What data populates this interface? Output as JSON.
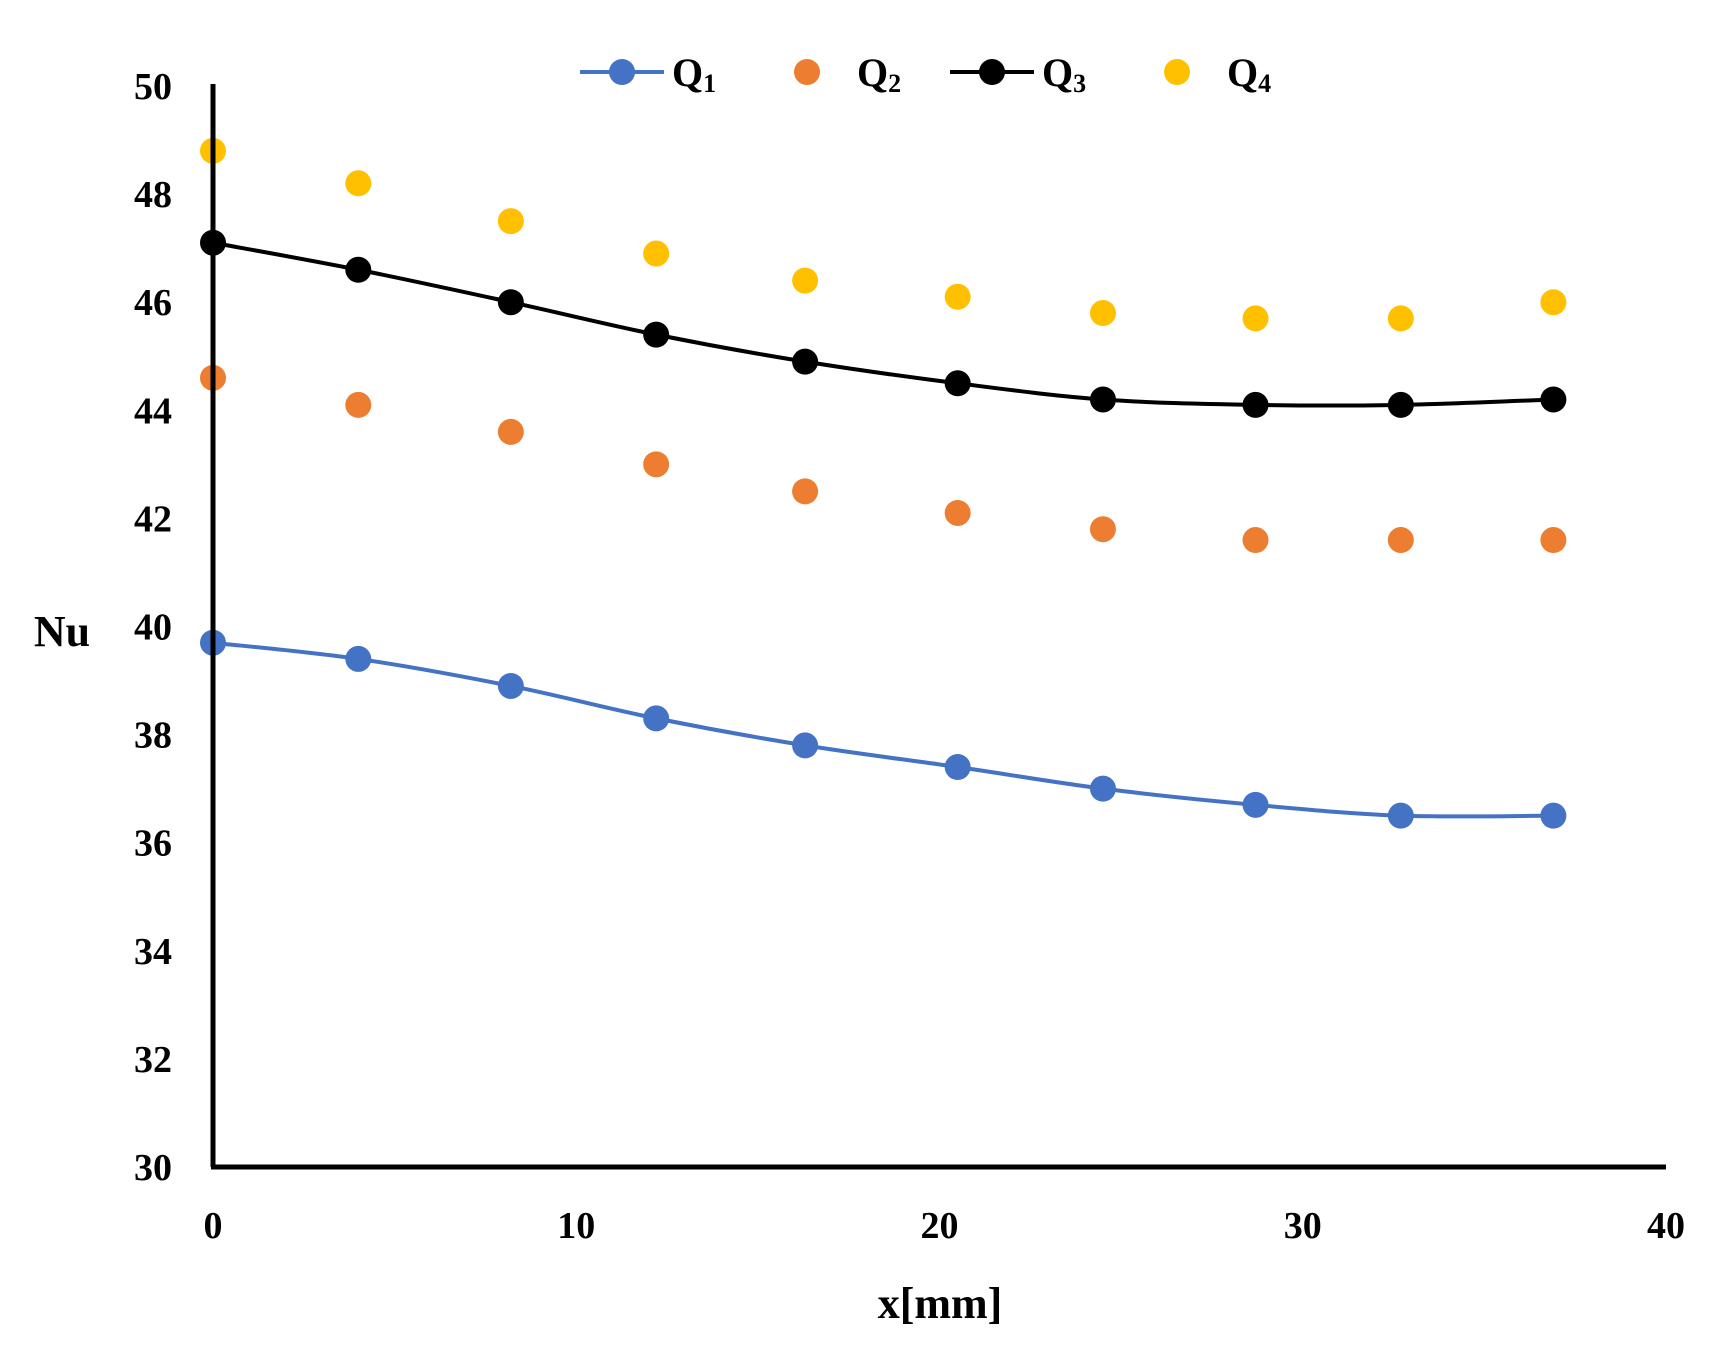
{
  "chart_data": {
    "type": "line",
    "title": "",
    "xlabel": "x[mm]",
    "ylabel": "Nu",
    "xlim": [
      0,
      40
    ],
    "ylim": [
      30,
      50
    ],
    "xticks": [
      0,
      10,
      20,
      30,
      40
    ],
    "yticks": [
      30,
      32,
      34,
      36,
      38,
      40,
      42,
      44,
      46,
      48,
      50
    ],
    "grid": false,
    "legend_position": "top",
    "x": [
      0,
      4.0,
      8.2,
      12.2,
      16.3,
      20.5,
      24.5,
      28.7,
      32.7,
      36.9
    ],
    "series": [
      {
        "name": "Q",
        "sub": "1",
        "color": "#4472C4",
        "style": "line-marker",
        "values": [
          39.7,
          39.4,
          38.9,
          38.3,
          37.8,
          37.4,
          37.0,
          36.7,
          36.5,
          36.5
        ]
      },
      {
        "name": "Q",
        "sub": "2",
        "color": "#ED7D31",
        "style": "marker",
        "values": [
          44.6,
          44.1,
          43.6,
          43.0,
          42.5,
          42.1,
          41.8,
          41.6,
          41.6,
          41.6
        ]
      },
      {
        "name": "Q",
        "sub": "3",
        "color": "#000000",
        "style": "line-marker",
        "values": [
          47.1,
          46.6,
          46.0,
          45.4,
          44.9,
          44.5,
          44.2,
          44.1,
          44.1,
          44.2
        ]
      },
      {
        "name": "Q",
        "sub": "4",
        "color": "#FFC000",
        "style": "marker",
        "values": [
          48.8,
          48.2,
          47.5,
          46.9,
          46.4,
          46.1,
          45.8,
          45.7,
          45.7,
          46.0
        ]
      }
    ]
  }
}
